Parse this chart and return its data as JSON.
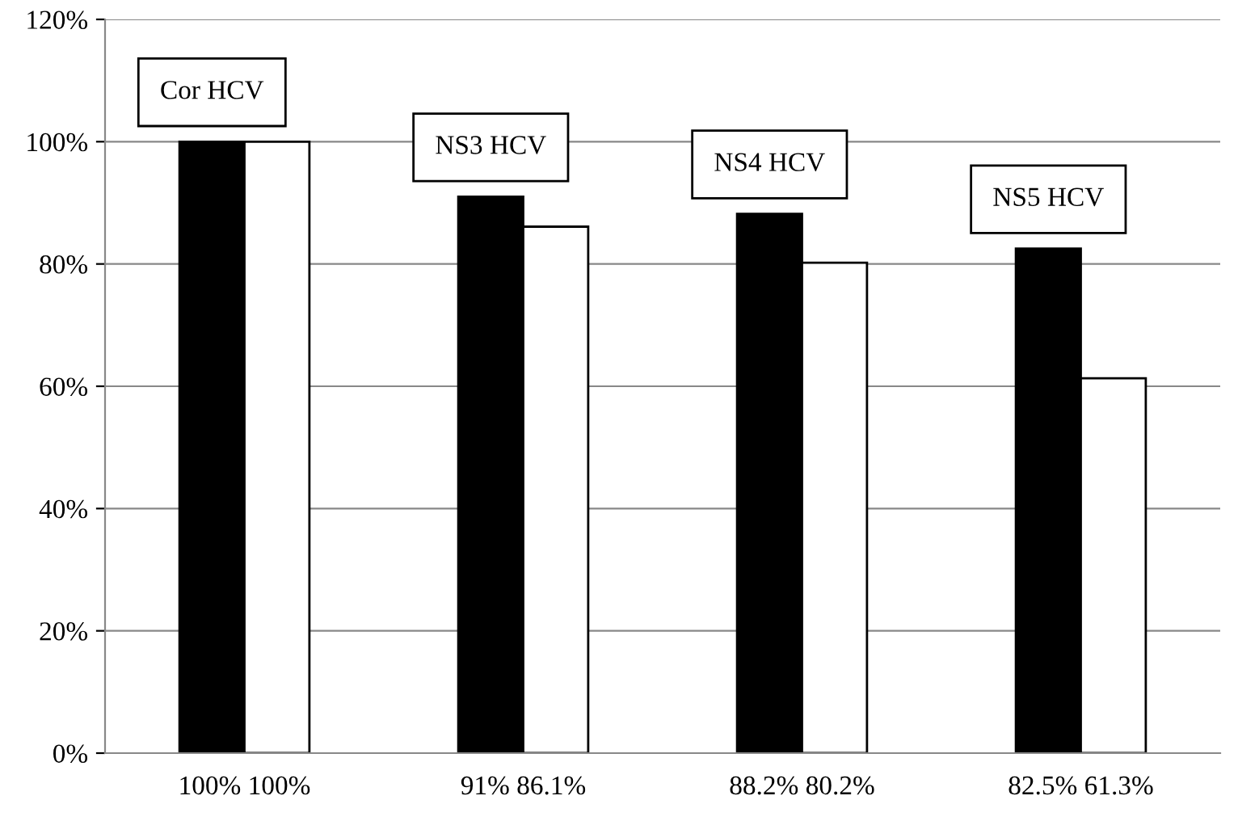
{
  "chart_data": {
    "type": "bar",
    "categories": [
      "100% 100%",
      "91% 86.1%",
      "88.2% 80.2%",
      "82.5% 61.3%"
    ],
    "series": [
      {
        "color": "#000000",
        "values": [
          100,
          91,
          88.2,
          82.5
        ]
      },
      {
        "color": "#ffffff",
        "values": [
          100,
          86.1,
          80.2,
          61.3
        ]
      }
    ],
    "ylim": [
      0,
      120
    ],
    "yticks": [
      {
        "value": 0,
        "label": "0%"
      },
      {
        "value": 20,
        "label": "20%"
      },
      {
        "value": 40,
        "label": "40%"
      },
      {
        "value": 60,
        "label": "60%"
      },
      {
        "value": 80,
        "label": "80%"
      },
      {
        "value": 100,
        "label": "100%"
      },
      {
        "value": 120,
        "label": "120%"
      }
    ],
    "grid": "y",
    "legend": false,
    "annotations": [
      "Cor HCV",
      "NS3 HCV",
      "NS4 HCV",
      "NS5 HCV"
    ]
  }
}
